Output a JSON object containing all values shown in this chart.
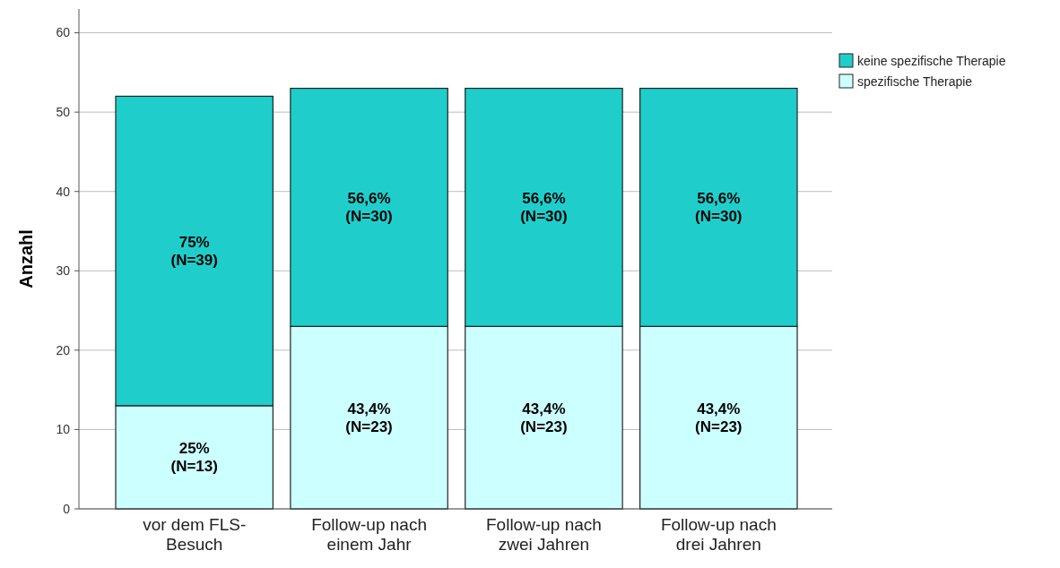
{
  "chart_data": {
    "type": "bar",
    "stacked": true,
    "ylabel": "Anzahl",
    "categories": [
      "vor dem FLS-\nBesuch",
      "Follow-up nach\neinem Jahr",
      "Follow-up nach\nzwei Jahren",
      "Follow-up nach\ndrei Jahren"
    ],
    "series": [
      {
        "name": "spezifische Therapie",
        "color": "#ccffff",
        "values": [
          13,
          23,
          23,
          23
        ],
        "value_labels": [
          "25%\n(N=13)",
          "43,4%\n(N=23)",
          "43,4%\n(N=23)",
          "43,4%\n(N=23)"
        ]
      },
      {
        "name": "keine spezifische Therapie",
        "color": "#1fcecb",
        "values": [
          39,
          30,
          30,
          30
        ],
        "value_labels": [
          "75%\n(N=39)",
          "56,6%\n(N=30)",
          "56,6%\n(N=30)",
          "56,6%\n(N=30)"
        ]
      }
    ],
    "ylim": [
      0,
      63
    ],
    "yticks": [
      0,
      10,
      20,
      30,
      40,
      50,
      60
    ],
    "grid": "y",
    "legend": "top right"
  }
}
